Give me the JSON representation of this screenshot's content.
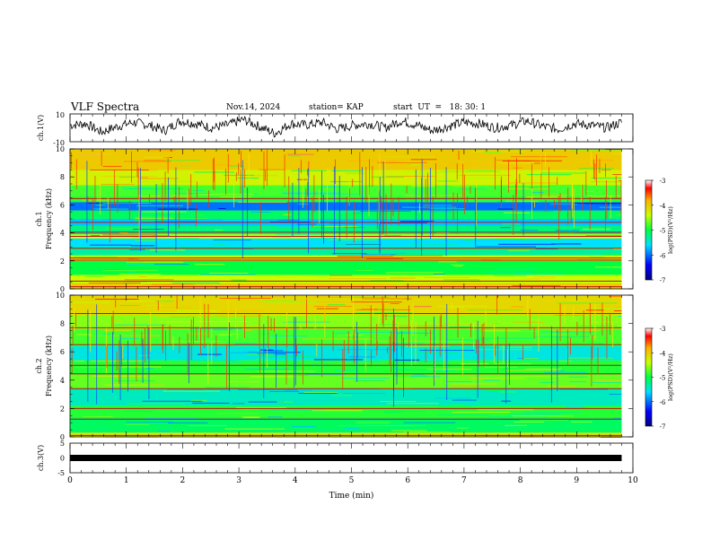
{
  "header": {
    "title": "VLF Spectra",
    "date": "Nov.14, 2024",
    "station": "station= KAP",
    "start_ut": "start  UT  =   18: 30: 1"
  },
  "chart_data": [
    {
      "type": "line",
      "ylabel": "ch.1(V)",
      "ylim": [
        -10,
        10
      ],
      "yticks": [
        "10",
        "-10"
      ],
      "xlim": [
        0,
        9.8
      ],
      "description_values": "waveform oscillating approximately between -7 and 8 V",
      "series": [
        {
          "values_approx": [
            2,
            3,
            -3,
            1,
            4,
            2,
            -2,
            5,
            3,
            0,
            2,
            6,
            1,
            -4,
            3,
            2,
            4,
            -1,
            2,
            3,
            0,
            5,
            2,
            -2,
            1,
            4,
            3,
            0,
            2,
            5,
            1,
            -1,
            3,
            2,
            0,
            4
          ]
        }
      ]
    },
    {
      "type": "heatmap",
      "ylabel": "Frequency (kHz)",
      "panel_label": "ch.1",
      "ylim": [
        0,
        10
      ],
      "yticks": [
        "0",
        "2",
        "4",
        "6",
        "8",
        "10"
      ],
      "xlim": [
        0,
        9.8
      ],
      "colorbar": {
        "label": "log(PSD)(V²/Hz)",
        "range": [
          -7,
          -3
        ],
        "ticks": [
          "-3",
          "-4",
          "-5",
          "-6",
          "-7"
        ]
      },
      "bands": [
        {
          "f0": 0.0,
          "f1": 0.4,
          "v": -4.0
        },
        {
          "f0": 0.4,
          "f1": 1.0,
          "v": -4.4
        },
        {
          "f0": 1.0,
          "f1": 2.0,
          "v": -5.0
        },
        {
          "f0": 2.0,
          "f1": 2.4,
          "v": -4.3
        },
        {
          "f0": 2.4,
          "f1": 3.0,
          "v": -5.3
        },
        {
          "f0": 3.0,
          "f1": 3.6,
          "v": -5.6
        },
        {
          "f0": 3.6,
          "f1": 3.9,
          "v": -4.4
        },
        {
          "f0": 3.9,
          "f1": 4.5,
          "v": -5.2
        },
        {
          "f0": 4.5,
          "f1": 5.0,
          "v": -5.7
        },
        {
          "f0": 5.0,
          "f1": 5.6,
          "v": -5.1
        },
        {
          "f0": 5.6,
          "f1": 6.2,
          "v": -6.0
        },
        {
          "f0": 6.2,
          "f1": 6.6,
          "v": -4.9
        },
        {
          "f0": 6.6,
          "f1": 7.4,
          "v": -4.8
        },
        {
          "f0": 7.4,
          "f1": 8.5,
          "v": -4.3
        },
        {
          "f0": 8.5,
          "f1": 10.0,
          "v": -4.0
        }
      ],
      "lines_khz": [
        0.15,
        0.55,
        2.05,
        2.2,
        2.9,
        3.75,
        4.05,
        4.75,
        6.45
      ]
    },
    {
      "type": "heatmap",
      "ylabel": "Frequency (kHz)",
      "panel_label": "ch.2",
      "ylim": [
        0,
        10
      ],
      "yticks": [
        "0",
        "2",
        "4",
        "6",
        "8",
        "10"
      ],
      "xlim": [
        0,
        9.8
      ],
      "colorbar": {
        "label": "log(PSD)(V²/Hz)",
        "range": [
          -7,
          -3
        ],
        "ticks": [
          "-3",
          "-4",
          "-5",
          "-6",
          "-7"
        ]
      },
      "bands": [
        {
          "f0": 0.0,
          "f1": 0.3,
          "v": -4.2
        },
        {
          "f0": 0.3,
          "f1": 1.4,
          "v": -5.1
        },
        {
          "f0": 1.4,
          "f1": 2.2,
          "v": -4.9
        },
        {
          "f0": 2.2,
          "f1": 3.4,
          "v": -5.4
        },
        {
          "f0": 3.4,
          "f1": 4.4,
          "v": -4.7
        },
        {
          "f0": 4.4,
          "f1": 5.4,
          "v": -4.9
        },
        {
          "f0": 5.4,
          "f1": 6.4,
          "v": -5.5
        },
        {
          "f0": 6.4,
          "f1": 7.6,
          "v": -4.8
        },
        {
          "f0": 7.6,
          "f1": 8.6,
          "v": -4.6
        },
        {
          "f0": 8.6,
          "f1": 10.0,
          "v": -4.1
        }
      ],
      "lines_khz": [
        0.1,
        1.25,
        2.0,
        3.4,
        4.45,
        5.05,
        6.5,
        7.7,
        8.7
      ]
    },
    {
      "type": "line",
      "ylabel": "ch.3(V)",
      "ylim": [
        -5,
        5
      ],
      "yticks": [
        "5",
        "0",
        "-5"
      ],
      "xlim": [
        0,
        9.8
      ],
      "xlabel": "Time (min)",
      "xticks": [
        "0",
        "1",
        "2",
        "3",
        "4",
        "5",
        "6",
        "7",
        "8",
        "9",
        "10"
      ],
      "series": [
        {
          "constant_approx": 0
        }
      ]
    }
  ]
}
